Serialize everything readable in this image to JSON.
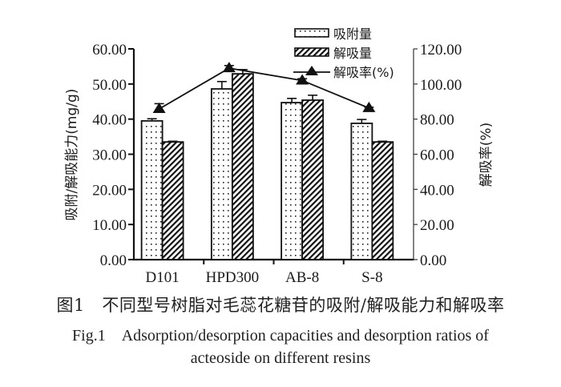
{
  "chart_data": {
    "type": "bar",
    "title": "",
    "categories": [
      "D101",
      "HPD300",
      "AB-8",
      "S-8"
    ],
    "series": [
      {
        "name": "吸附量",
        "type": "bar",
        "axis": "left",
        "pattern": "dots",
        "values": [
          39.5,
          48.6,
          44.7,
          38.8
        ],
        "errors": [
          0.6,
          2.1,
          1.2,
          1.1
        ]
      },
      {
        "name": "解吸量",
        "type": "bar",
        "axis": "left",
        "pattern": "diagonal-hatch",
        "values": [
          33.5,
          52.9,
          45.4,
          33.5
        ],
        "errors": [
          0.2,
          1.2,
          1.4,
          0.2
        ]
      },
      {
        "name": "解吸率(%)",
        "type": "line",
        "axis": "right",
        "marker": "triangle",
        "values": [
          85.8,
          109.0,
          102.0,
          86.3
        ],
        "errors": [
          3.0,
          1.5,
          1.0,
          0.5
        ]
      }
    ],
    "xlabel": "",
    "ylabel": "吸附/解吸能力(mg/g)",
    "y2label": "解吸率(%)",
    "ylim": [
      0,
      60
    ],
    "y2lim": [
      0,
      120
    ],
    "yticks": [
      "0.00",
      "10.00",
      "20.00",
      "30.00",
      "40.00",
      "50.00",
      "60.00"
    ],
    "y2ticks": [
      "0.00",
      "20.00",
      "40.00",
      "60.00",
      "80.00",
      "100.00",
      "120.00"
    ],
    "grid": false,
    "legend_position": "top-right inside"
  },
  "legend": {
    "items": [
      {
        "label": "吸附量"
      },
      {
        "label": "解吸量"
      },
      {
        "label": "解吸率(%)"
      }
    ]
  },
  "axes": {
    "left_title": "吸附/解吸能力(mg/g)",
    "right_title": "解吸率(%)"
  },
  "caption": {
    "cn": "图1　不同型号树脂对毛蕊花糖苷的吸附/解吸能力和解吸率",
    "en_line1": "Fig.1　Adsorption/desorption capacities and desorption ratios of",
    "en_line2": "acteoside on different resins"
  }
}
